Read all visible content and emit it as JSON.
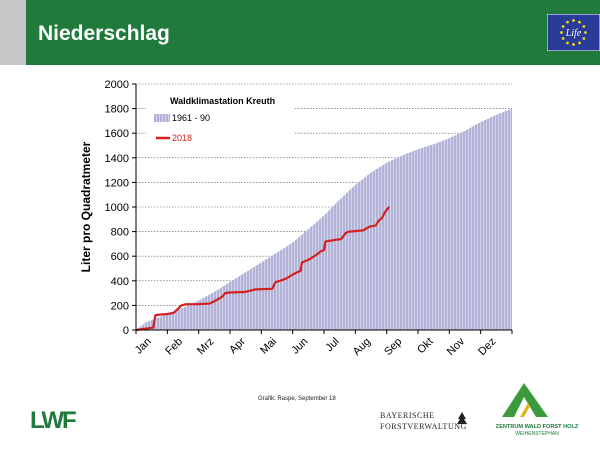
{
  "header": {
    "title": "Niederschlag"
  },
  "logos": {
    "eu": {
      "text": "Life",
      "star_color": "#f7d417",
      "bg_color": "#2a3c9a"
    },
    "lwf": {
      "text": "LWF"
    },
    "bf": {
      "line1": "BAYERISCHE",
      "line2": "FORSTVERWALTUNG"
    },
    "zw": {
      "line1": "ZENTRUM WALD FORST HOLZ",
      "line2": "WEIHENSTEPHAN"
    }
  },
  "credit": "Grafik: Raspe, September 18",
  "chart_data": {
    "type": "area",
    "title": "Waldklimastation Kreuth",
    "xlabel": "",
    "ylabel": "Liter pro Quadratmeter",
    "ylim": [
      0,
      2000
    ],
    "yticks": [
      0,
      200,
      400,
      600,
      800,
      1000,
      1200,
      1400,
      1600,
      1800,
      2000
    ],
    "categories": [
      "Jan",
      "Feb",
      "Mrz",
      "Apr",
      "Mai",
      "Jun",
      "Jul",
      "Aug",
      "Sep",
      "Okt",
      "Nov",
      "Dez"
    ],
    "grid": "horizontal dashed",
    "legend_position": "top-left",
    "series": [
      {
        "name": "1961 - 90",
        "style": "hatched area",
        "color": "#8f8fc4",
        "points": [
          [
            0,
            0
          ],
          [
            0.3,
            60
          ],
          [
            0.6,
            90
          ],
          [
            1,
            130
          ],
          [
            1.5,
            180
          ],
          [
            2,
            240
          ],
          [
            2.5,
            310
          ],
          [
            3,
            390
          ],
          [
            3.5,
            470
          ],
          [
            4,
            550
          ],
          [
            4.5,
            630
          ],
          [
            5,
            710
          ],
          [
            5.5,
            820
          ],
          [
            6,
            930
          ],
          [
            6.5,
            1060
          ],
          [
            7,
            1180
          ],
          [
            7.5,
            1280
          ],
          [
            8,
            1360
          ],
          [
            8.5,
            1420
          ],
          [
            9,
            1470
          ],
          [
            9.5,
            1510
          ],
          [
            10,
            1560
          ],
          [
            10.5,
            1620
          ],
          [
            11,
            1690
          ],
          [
            11.5,
            1750
          ],
          [
            12,
            1800
          ]
        ]
      },
      {
        "name": "2018",
        "style": "line",
        "color": "#d42020",
        "points": [
          [
            0.0,
            0
          ],
          [
            0.3,
            10
          ],
          [
            0.55,
            20
          ],
          [
            0.62,
            120
          ],
          [
            0.75,
            125
          ],
          [
            1,
            130
          ],
          [
            1.2,
            140
          ],
          [
            1.33,
            170
          ],
          [
            1.45,
            200
          ],
          [
            1.6,
            210
          ],
          [
            2,
            210
          ],
          [
            2.35,
            215
          ],
          [
            2.55,
            240
          ],
          [
            2.75,
            270
          ],
          [
            2.85,
            300
          ],
          [
            3.0,
            305
          ],
          [
            3.5,
            310
          ],
          [
            3.65,
            320
          ],
          [
            3.8,
            330
          ],
          [
            4.0,
            332
          ],
          [
            4.35,
            335
          ],
          [
            4.45,
            390
          ],
          [
            4.6,
            400
          ],
          [
            4.8,
            420
          ],
          [
            5.0,
            450
          ],
          [
            5.15,
            470
          ],
          [
            5.25,
            480
          ],
          [
            5.3,
            550
          ],
          [
            5.5,
            570
          ],
          [
            5.75,
            610
          ],
          [
            5.9,
            640
          ],
          [
            6.0,
            650
          ],
          [
            6.05,
            720
          ],
          [
            6.3,
            730
          ],
          [
            6.55,
            740
          ],
          [
            6.7,
            790
          ],
          [
            6.8,
            800
          ],
          [
            7.25,
            810
          ],
          [
            7.45,
            840
          ],
          [
            7.65,
            850
          ],
          [
            7.75,
            890
          ],
          [
            7.85,
            910
          ],
          [
            7.95,
            960
          ],
          [
            8.08,
            1000
          ]
        ]
      }
    ]
  }
}
